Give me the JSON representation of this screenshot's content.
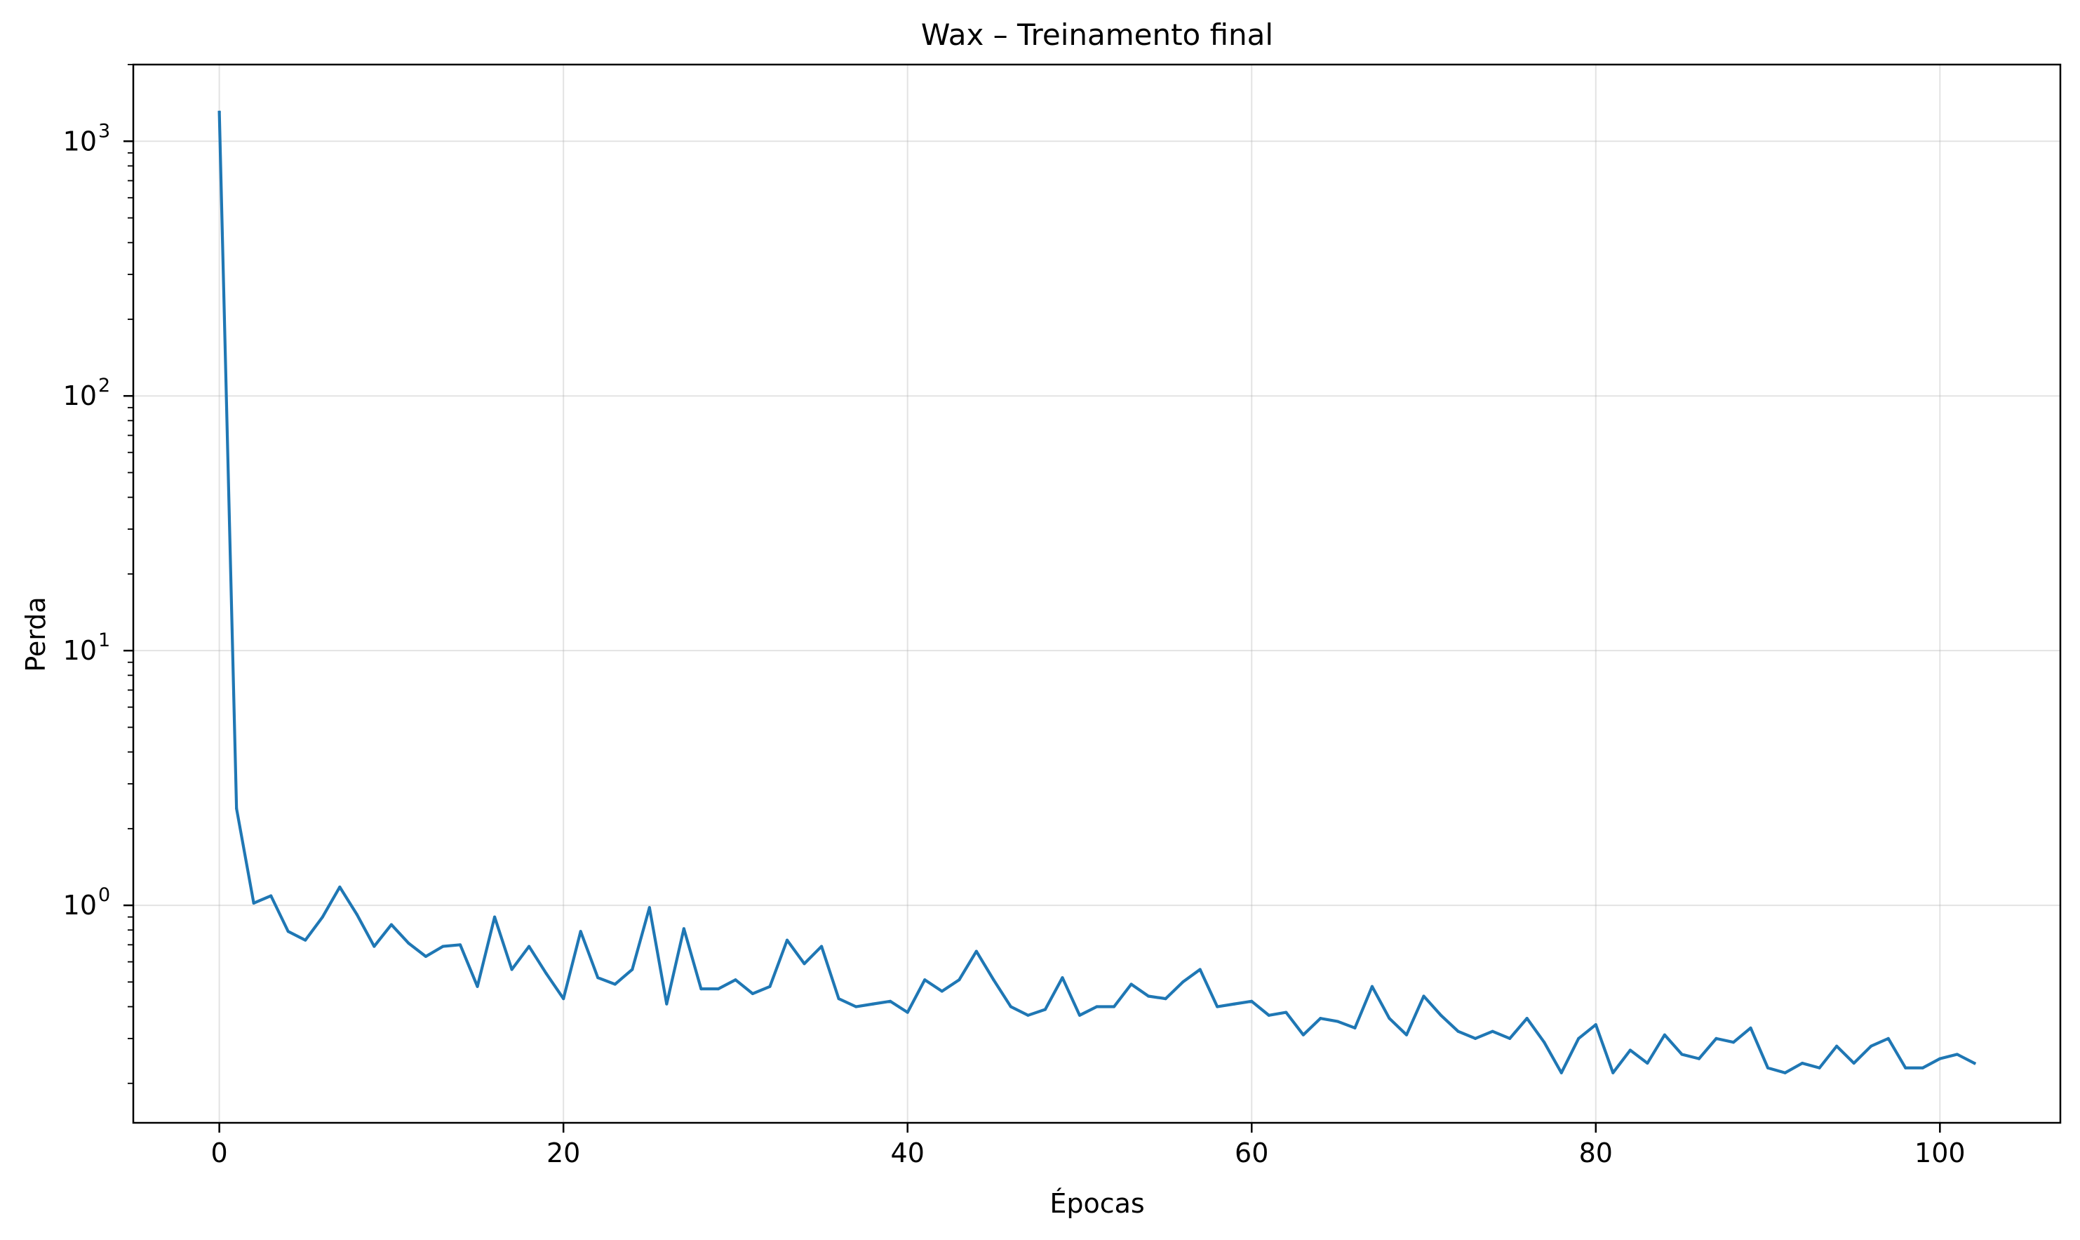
{
  "chart_data": {
    "type": "line",
    "title": "Wax – Treinamento final",
    "xlabel": "Épocas",
    "ylabel": "Perda",
    "xlim": [
      -5,
      107
    ],
    "ylim": [
      0.14,
      2000
    ],
    "yscale": "log",
    "grid": true,
    "legend": "none",
    "x_ticks": [
      0,
      20,
      40,
      60,
      80,
      100
    ],
    "x_tick_labels": [
      "0",
      "20",
      "40",
      "60",
      "80",
      "100"
    ],
    "y_ticks": [
      1,
      10,
      100,
      1000
    ],
    "y_tick_labels": [
      {
        "base": "10",
        "exp": "0"
      },
      {
        "base": "10",
        "exp": "1"
      },
      {
        "base": "10",
        "exp": "2"
      },
      {
        "base": "10",
        "exp": "3"
      }
    ],
    "series": [
      {
        "color": "#1f77b4",
        "x": [
          0,
          1,
          2,
          3,
          4,
          5,
          6,
          7,
          8,
          9,
          10,
          11,
          12,
          13,
          14,
          15,
          16,
          17,
          18,
          19,
          20,
          21,
          22,
          23,
          24,
          25,
          26,
          27,
          28,
          29,
          30,
          31,
          32,
          33,
          34,
          35,
          36,
          37,
          38,
          39,
          40,
          41,
          42,
          43,
          44,
          45,
          46,
          47,
          48,
          49,
          50,
          51,
          52,
          53,
          54,
          55,
          56,
          57,
          58,
          59,
          60,
          61,
          62,
          63,
          64,
          65,
          66,
          67,
          68,
          69,
          70,
          71,
          72,
          73,
          74,
          75,
          76,
          77,
          78,
          79,
          80,
          81,
          82,
          83,
          84,
          85,
          86,
          87,
          88,
          89,
          90,
          91,
          92,
          93,
          94,
          95,
          96,
          97,
          98,
          99,
          100,
          101,
          102
        ],
        "values": [
          1300,
          2.4,
          1.02,
          1.09,
          0.79,
          0.73,
          0.9,
          1.18,
          0.92,
          0.69,
          0.84,
          0.71,
          0.63,
          0.69,
          0.7,
          0.48,
          0.9,
          0.56,
          0.69,
          0.54,
          0.43,
          0.79,
          0.52,
          0.49,
          0.56,
          0.98,
          0.41,
          0.81,
          0.47,
          0.47,
          0.51,
          0.45,
          0.48,
          0.73,
          0.59,
          0.69,
          0.43,
          0.4,
          0.41,
          0.42,
          0.38,
          0.51,
          0.46,
          0.51,
          0.66,
          0.51,
          0.4,
          0.37,
          0.39,
          0.52,
          0.37,
          0.4,
          0.4,
          0.49,
          0.44,
          0.43,
          0.5,
          0.56,
          0.4,
          0.41,
          0.42,
          0.37,
          0.38,
          0.31,
          0.36,
          0.35,
          0.33,
          0.48,
          0.36,
          0.31,
          0.44,
          0.37,
          0.32,
          0.3,
          0.32,
          0.3,
          0.36,
          0.29,
          0.22,
          0.3,
          0.34,
          0.22,
          0.27,
          0.24,
          0.31,
          0.26,
          0.25,
          0.3,
          0.29,
          0.33,
          0.23,
          0.22,
          0.24,
          0.23,
          0.28,
          0.24,
          0.28,
          0.3,
          0.23,
          0.23,
          0.25,
          0.26,
          0.24
        ]
      }
    ]
  }
}
